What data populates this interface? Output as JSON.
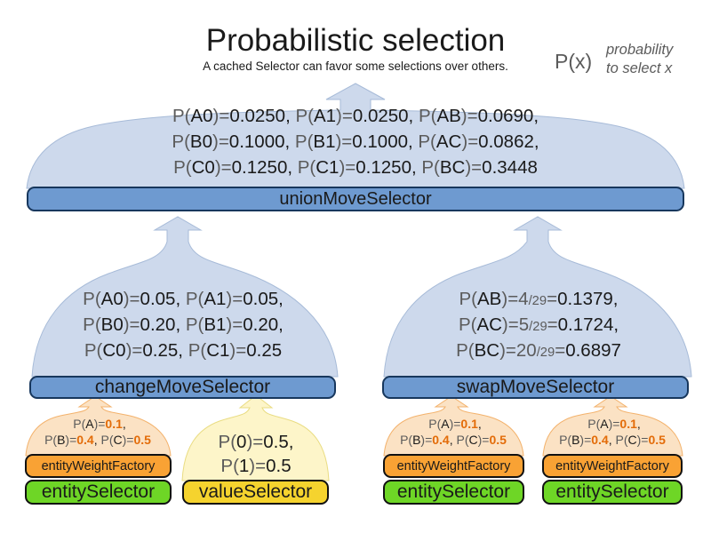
{
  "title": "Probabilistic selection",
  "subtitle": "A cached Selector can favor some selections over others.",
  "legend": {
    "symbol": "P(x)",
    "note": [
      "probability",
      "to select x"
    ]
  },
  "colors": {
    "funnel-blue": "#cdd9ec",
    "funnel-blue-border": "#a7bbd8",
    "bar-blue": "#6e9ad0",
    "bar-blue-border": "#17375d",
    "funnel-orange": "#fbe2c4",
    "funnel-orange-border": "#f3b26c",
    "bar-orange": "#f9a234",
    "funnel-yellow": "#fdf5c9",
    "funnel-yellow-border": "#e9dc82",
    "bar-yellow": "#f5d32e",
    "bar-green": "#6ed626",
    "text-gray": "#5b5b5b",
    "text-black": "#1a1a1a",
    "value-orange": "#e36c09"
  },
  "union": {
    "label": "unionMoveSelector",
    "lines": [
      [
        {
          "t": "P(",
          "c": "g"
        },
        {
          "t": "A0",
          "c": "b"
        },
        {
          "t": ")=",
          "c": "g"
        },
        {
          "t": "0.0250, ",
          "c": "b"
        },
        {
          "t": "P(",
          "c": "g"
        },
        {
          "t": "A1",
          "c": "b"
        },
        {
          "t": ")=",
          "c": "g"
        },
        {
          "t": "0.0250, ",
          "c": "b"
        },
        {
          "t": "P(",
          "c": "g"
        },
        {
          "t": "AB",
          "c": "b"
        },
        {
          "t": ")=",
          "c": "g"
        },
        {
          "t": "0.0690,",
          "c": "b"
        }
      ],
      [
        {
          "t": "P(",
          "c": "g"
        },
        {
          "t": "B0",
          "c": "b"
        },
        {
          "t": ")=",
          "c": "g"
        },
        {
          "t": "0.1000, ",
          "c": "b"
        },
        {
          "t": "P(",
          "c": "g"
        },
        {
          "t": "B1",
          "c": "b"
        },
        {
          "t": ")=",
          "c": "g"
        },
        {
          "t": "0.1000, ",
          "c": "b"
        },
        {
          "t": "P(",
          "c": "g"
        },
        {
          "t": "AC",
          "c": "b"
        },
        {
          "t": ")=",
          "c": "g"
        },
        {
          "t": "0.0862,",
          "c": "b"
        }
      ],
      [
        {
          "t": "P(",
          "c": "g"
        },
        {
          "t": "C0",
          "c": "b"
        },
        {
          "t": ")=",
          "c": "g"
        },
        {
          "t": "0.1250, ",
          "c": "b"
        },
        {
          "t": "P(",
          "c": "g"
        },
        {
          "t": "C1",
          "c": "b"
        },
        {
          "t": ")=",
          "c": "g"
        },
        {
          "t": "0.1250, ",
          "c": "b"
        },
        {
          "t": "P(",
          "c": "g"
        },
        {
          "t": "BC",
          "c": "b"
        },
        {
          "t": ")=",
          "c": "g"
        },
        {
          "t": "0.3448",
          "c": "b"
        }
      ]
    ]
  },
  "change": {
    "label": "changeMoveSelector",
    "lines": [
      [
        {
          "t": "P(",
          "c": "g"
        },
        {
          "t": "A0",
          "c": "b"
        },
        {
          "t": ")=",
          "c": "g"
        },
        {
          "t": "0.05, ",
          "c": "b"
        },
        {
          "t": "P(",
          "c": "g"
        },
        {
          "t": "A1",
          "c": "b"
        },
        {
          "t": ")=",
          "c": "g"
        },
        {
          "t": "0.05,",
          "c": "b"
        }
      ],
      [
        {
          "t": "P(",
          "c": "g"
        },
        {
          "t": "B0",
          "c": "b"
        },
        {
          "t": ")=",
          "c": "g"
        },
        {
          "t": "0.20, ",
          "c": "b"
        },
        {
          "t": "P(",
          "c": "g"
        },
        {
          "t": "B1",
          "c": "b"
        },
        {
          "t": ")=",
          "c": "g"
        },
        {
          "t": "0.20,",
          "c": "b"
        }
      ],
      [
        {
          "t": "P(",
          "c": "g"
        },
        {
          "t": "C0",
          "c": "b"
        },
        {
          "t": ")=",
          "c": "g"
        },
        {
          "t": "0.25, ",
          "c": "b"
        },
        {
          "t": "P(",
          "c": "g"
        },
        {
          "t": "C1",
          "c": "b"
        },
        {
          "t": ")=",
          "c": "g"
        },
        {
          "t": "0.25",
          "c": "b"
        }
      ]
    ]
  },
  "swap": {
    "label": "swapMoveSelector",
    "lines": [
      [
        {
          "t": "P(",
          "c": "g"
        },
        {
          "t": "AB",
          "c": "b"
        },
        {
          "t": ")=",
          "c": "g"
        },
        {
          "t": "4",
          "c": "g"
        },
        {
          "t": "/29",
          "c": "s"
        },
        {
          "t": "=",
          "c": "g"
        },
        {
          "t": "0.1379,",
          "c": "b"
        }
      ],
      [
        {
          "t": "P(",
          "c": "g"
        },
        {
          "t": "AC",
          "c": "b"
        },
        {
          "t": ")=",
          "c": "g"
        },
        {
          "t": "5",
          "c": "g"
        },
        {
          "t": "/29",
          "c": "s"
        },
        {
          "t": "=",
          "c": "g"
        },
        {
          "t": "0.1724,",
          "c": "b"
        }
      ],
      [
        {
          "t": "P(",
          "c": "g"
        },
        {
          "t": "BC",
          "c": "b"
        },
        {
          "t": ")=",
          "c": "g"
        },
        {
          "t": "20",
          "c": "g"
        },
        {
          "t": "/29",
          "c": "s"
        },
        {
          "t": "=",
          "c": "g"
        },
        {
          "t": "0.6897",
          "c": "b"
        }
      ]
    ]
  },
  "entity_weight": {
    "label": "entityWeightFactory",
    "lines": [
      [
        {
          "t": "P(",
          "c": "g"
        },
        {
          "t": "A",
          "c": "b"
        },
        {
          "t": ")=",
          "c": "g"
        },
        {
          "t": "0.1",
          "c": "o"
        },
        {
          "t": ",",
          "c": "b"
        }
      ],
      [
        {
          "t": "P(",
          "c": "g"
        },
        {
          "t": "B",
          "c": "b"
        },
        {
          "t": ")=",
          "c": "g"
        },
        {
          "t": "0.4",
          "c": "o"
        },
        {
          "t": ", ",
          "c": "b"
        },
        {
          "t": "P(",
          "c": "g"
        },
        {
          "t": "C",
          "c": "b"
        },
        {
          "t": ")=",
          "c": "g"
        },
        {
          "t": "0.5",
          "c": "o"
        }
      ]
    ]
  },
  "value": {
    "label": "valueSelector",
    "lines": [
      [
        {
          "t": "P(",
          "c": "g"
        },
        {
          "t": "0",
          "c": "b"
        },
        {
          "t": ")=",
          "c": "g"
        },
        {
          "t": "0.5,",
          "c": "b"
        }
      ],
      [
        {
          "t": "P(",
          "c": "g"
        },
        {
          "t": "1",
          "c": "b"
        },
        {
          "t": ")=",
          "c": "g"
        },
        {
          "t": "0.5",
          "c": "b"
        }
      ]
    ]
  },
  "entity": {
    "label": "entitySelector"
  }
}
